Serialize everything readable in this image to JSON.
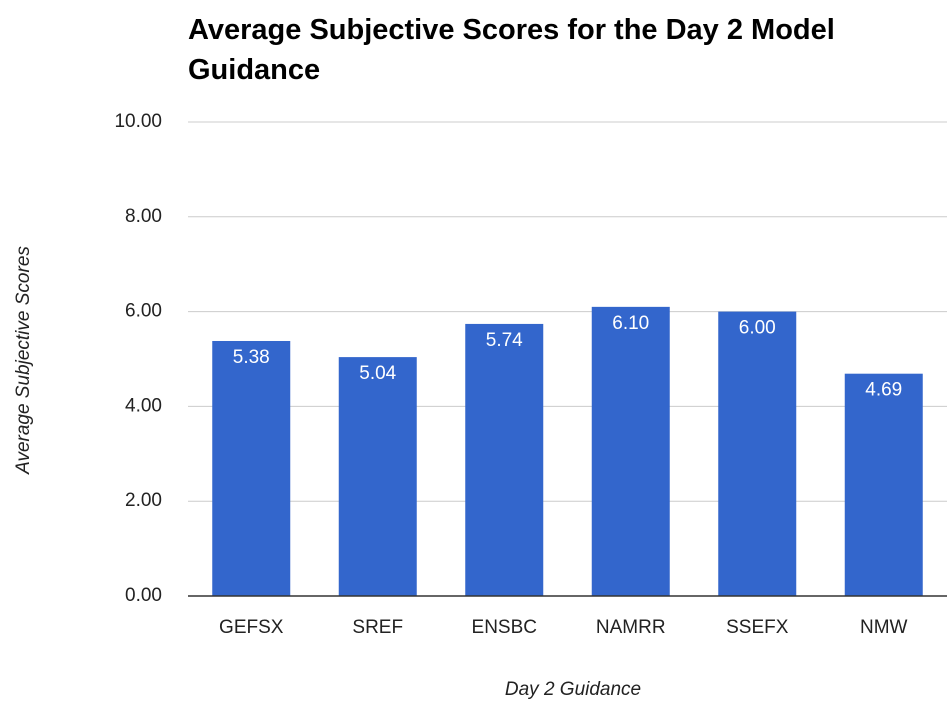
{
  "chart_data": {
    "type": "bar",
    "title": "Average Subjective Scores for the Day 2 Model Guidance",
    "x_label": "Day 2 Guidance",
    "y_label": "Average Subjective Scores",
    "categories": [
      "GEFSX",
      "SREF",
      "ENSBC",
      "NAMRR",
      "SSEFX",
      "NMW"
    ],
    "values": [
      5.38,
      5.04,
      5.74,
      6.1,
      6.0,
      4.69
    ],
    "value_labels": [
      "5.38",
      "5.04",
      "5.74",
      "6.10",
      "6.00",
      "4.69"
    ],
    "color": "#3366cc",
    "ylim": [
      0,
      10
    ],
    "yticks": [
      {
        "value": 0,
        "label": "0.00"
      },
      {
        "value": 2,
        "label": "2.00"
      },
      {
        "value": 4,
        "label": "4.00"
      },
      {
        "value": 6,
        "label": "6.00"
      },
      {
        "value": 8,
        "label": "8.00"
      },
      {
        "value": 10,
        "label": "10.00"
      }
    ],
    "grid": true
  }
}
